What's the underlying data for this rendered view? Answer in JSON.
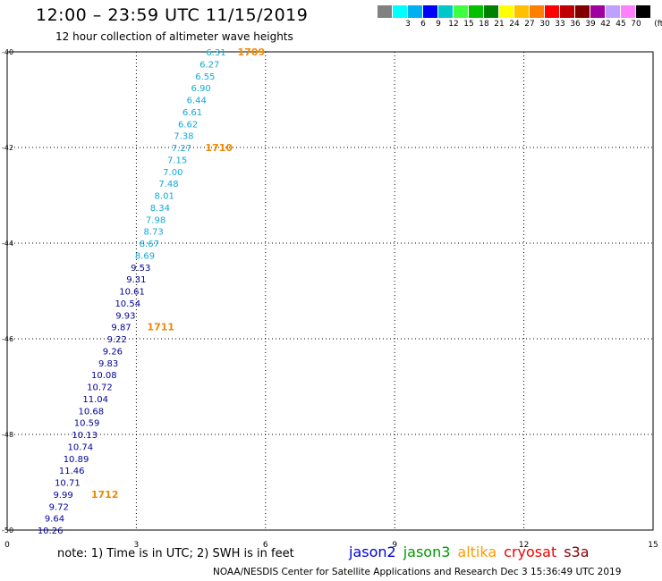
{
  "header": {
    "title": "12:00 – 23:59 UTC 11/15/2019",
    "subtitle": "12 hour collection of altimeter wave heights"
  },
  "legend": {
    "unit": "(ft)",
    "bins": [
      {
        "label": "",
        "color": "#808080"
      },
      {
        "label": "3",
        "color": "#00ffff"
      },
      {
        "label": "6",
        "color": "#00b0f0"
      },
      {
        "label": "9",
        "color": "#0000ff"
      },
      {
        "label": "12",
        "color": "#00c8c8"
      },
      {
        "label": "15",
        "color": "#40ff40"
      },
      {
        "label": "18",
        "color": "#00c000"
      },
      {
        "label": "21",
        "color": "#008000"
      },
      {
        "label": "24",
        "color": "#ffff00"
      },
      {
        "label": "27",
        "color": "#ffc000"
      },
      {
        "label": "30",
        "color": "#ff8000"
      },
      {
        "label": "33",
        "color": "#ff0000"
      },
      {
        "label": "36",
        "color": "#c00000"
      },
      {
        "label": "39",
        "color": "#800000"
      },
      {
        "label": "42",
        "color": "#a000a0"
      },
      {
        "label": "45",
        "color": "#c0a0ff"
      },
      {
        "label": "70",
        "color": "#ff80ff"
      },
      {
        "label": "",
        "color": "#000000"
      }
    ]
  },
  "chart_data": {
    "type": "scatter",
    "title": "12:00 – 23:59 UTC 11/15/2019",
    "subtitle": "12 hour collection of altimeter wave heights",
    "x_range": [
      0,
      15
    ],
    "x_ticks": [
      "0",
      "3",
      "6",
      "9",
      "12",
      "15"
    ],
    "y_range": [
      -50,
      -40
    ],
    "y_ticks": [
      "-40",
      "-42",
      "-44",
      "-46",
      "-48",
      "-50"
    ],
    "grid": true,
    "colors": {
      "light": "#0fa8d8",
      "dark": "#00009a",
      "time": "#ee8800"
    },
    "points": [
      {
        "lon": 4.85,
        "lat": -40.0,
        "swh": "6.31",
        "c": "light"
      },
      {
        "lon": 4.7,
        "lat": -40.25,
        "swh": "6.27",
        "c": "light"
      },
      {
        "lon": 4.6,
        "lat": -40.5,
        "swh": "6.55",
        "c": "light"
      },
      {
        "lon": 4.5,
        "lat": -40.75,
        "swh": "6.90",
        "c": "light"
      },
      {
        "lon": 4.4,
        "lat": -41.0,
        "swh": "6.44",
        "c": "light"
      },
      {
        "lon": 4.3,
        "lat": -41.25,
        "swh": "6.61",
        "c": "light"
      },
      {
        "lon": 4.2,
        "lat": -41.5,
        "swh": "6.62",
        "c": "light"
      },
      {
        "lon": 4.1,
        "lat": -41.75,
        "swh": "7.38",
        "c": "light"
      },
      {
        "lon": 4.05,
        "lat": -42.0,
        "swh": "7.27",
        "c": "light"
      },
      {
        "lon": 3.95,
        "lat": -42.25,
        "swh": "7.15",
        "c": "light"
      },
      {
        "lon": 3.85,
        "lat": -42.5,
        "swh": "7.00",
        "c": "light"
      },
      {
        "lon": 3.75,
        "lat": -42.75,
        "swh": "7.48",
        "c": "light"
      },
      {
        "lon": 3.65,
        "lat": -43.0,
        "swh": "8.01",
        "c": "light"
      },
      {
        "lon": 3.55,
        "lat": -43.25,
        "swh": "8.34",
        "c": "light"
      },
      {
        "lon": 3.45,
        "lat": -43.5,
        "swh": "7.98",
        "c": "light"
      },
      {
        "lon": 3.4,
        "lat": -43.75,
        "swh": "8.73",
        "c": "light"
      },
      {
        "lon": 3.3,
        "lat": -44.0,
        "swh": "8.67",
        "c": "light"
      },
      {
        "lon": 3.2,
        "lat": -44.25,
        "swh": "8.69",
        "c": "light"
      },
      {
        "lon": 3.1,
        "lat": -44.5,
        "swh": "9.53",
        "c": "dark"
      },
      {
        "lon": 3.0,
        "lat": -44.75,
        "swh": "9.31",
        "c": "dark"
      },
      {
        "lon": 2.9,
        "lat": -45.0,
        "swh": "10.61",
        "c": "dark"
      },
      {
        "lon": 2.8,
        "lat": -45.25,
        "swh": "10.54",
        "c": "dark"
      },
      {
        "lon": 2.75,
        "lat": -45.5,
        "swh": "9.93",
        "c": "dark"
      },
      {
        "lon": 2.65,
        "lat": -45.75,
        "swh": "9.87",
        "c": "dark"
      },
      {
        "lon": 2.55,
        "lat": -46.0,
        "swh": "9.22",
        "c": "dark"
      },
      {
        "lon": 2.45,
        "lat": -46.25,
        "swh": "9.26",
        "c": "dark"
      },
      {
        "lon": 2.35,
        "lat": -46.5,
        "swh": "9.83",
        "c": "dark"
      },
      {
        "lon": 2.25,
        "lat": -46.75,
        "swh": "10.08",
        "c": "dark"
      },
      {
        "lon": 2.15,
        "lat": -47.0,
        "swh": "10.72",
        "c": "dark"
      },
      {
        "lon": 2.05,
        "lat": -47.25,
        "swh": "11.04",
        "c": "dark"
      },
      {
        "lon": 1.95,
        "lat": -47.5,
        "swh": "10.68",
        "c": "dark"
      },
      {
        "lon": 1.85,
        "lat": -47.75,
        "swh": "10.59",
        "c": "dark"
      },
      {
        "lon": 1.8,
        "lat": -48.0,
        "swh": "10.13",
        "c": "dark"
      },
      {
        "lon": 1.7,
        "lat": -48.25,
        "swh": "10.74",
        "c": "dark"
      },
      {
        "lon": 1.6,
        "lat": -48.5,
        "swh": "10.89",
        "c": "dark"
      },
      {
        "lon": 1.5,
        "lat": -48.75,
        "swh": "11.46",
        "c": "dark"
      },
      {
        "lon": 1.4,
        "lat": -49.0,
        "swh": "10.71",
        "c": "dark"
      },
      {
        "lon": 1.3,
        "lat": -49.25,
        "swh": "9.99",
        "c": "dark"
      },
      {
        "lon": 1.2,
        "lat": -49.5,
        "swh": "9.72",
        "c": "dark"
      },
      {
        "lon": 1.1,
        "lat": -49.75,
        "swh": "9.64",
        "c": "dark"
      },
      {
        "lon": 1.0,
        "lat": -50.0,
        "swh": "10.26",
        "c": "dark"
      }
    ],
    "time_labels": [
      {
        "lon": 5.35,
        "lat": -40.0,
        "text": "1709"
      },
      {
        "lon": 4.6,
        "lat": -42.0,
        "text": "1710"
      },
      {
        "lon": 3.25,
        "lat": -45.75,
        "text": "1711"
      },
      {
        "lon": 1.95,
        "lat": -49.25,
        "text": "1712"
      }
    ]
  },
  "footer": {
    "note": "note:  1) Time is in UTC;  2) SWH is in feet",
    "satellites": [
      {
        "name": "jason2",
        "color": "#0000dd"
      },
      {
        "name": "jason3",
        "color": "#009900"
      },
      {
        "name": "altika",
        "color": "#ff9900"
      },
      {
        "name": "cryosat",
        "color": "#ee0000"
      },
      {
        "name": "s3a",
        "color": "#880000"
      }
    ],
    "credit": "NOAA/NESDIS Center for Satellite Applications and Research    Dec  3 15:36:49 UTC 2019"
  }
}
